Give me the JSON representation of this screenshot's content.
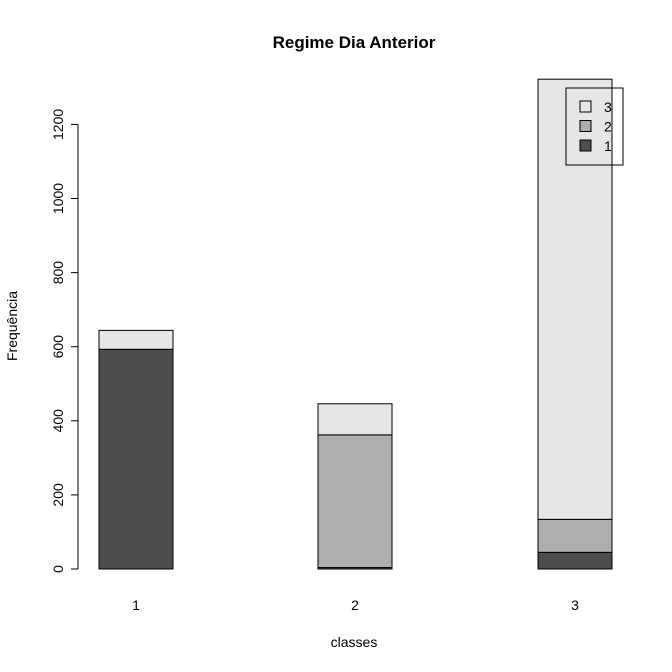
{
  "chart_data": {
    "type": "bar",
    "stacked": true,
    "title": "Regime Dia Anterior",
    "xlabel": "classes",
    "ylabel": "Frequência",
    "categories": [
      "1",
      "2",
      "3"
    ],
    "series": [
      {
        "name": "1",
        "values": [
          593,
          4,
          45
        ],
        "color": "#4d4d4d"
      },
      {
        "name": "2",
        "values": [
          0,
          358,
          89
        ],
        "color": "#aeaeae"
      },
      {
        "name": "3",
        "values": [
          51,
          84,
          1188
        ],
        "color": "#e6e6e6"
      }
    ],
    "yticks": [
      0,
      200,
      400,
      600,
      800,
      1000,
      1200
    ],
    "ylim": [
      0,
      1322
    ],
    "legend": {
      "position": "top-right",
      "order": [
        "3",
        "2",
        "1"
      ]
    }
  }
}
